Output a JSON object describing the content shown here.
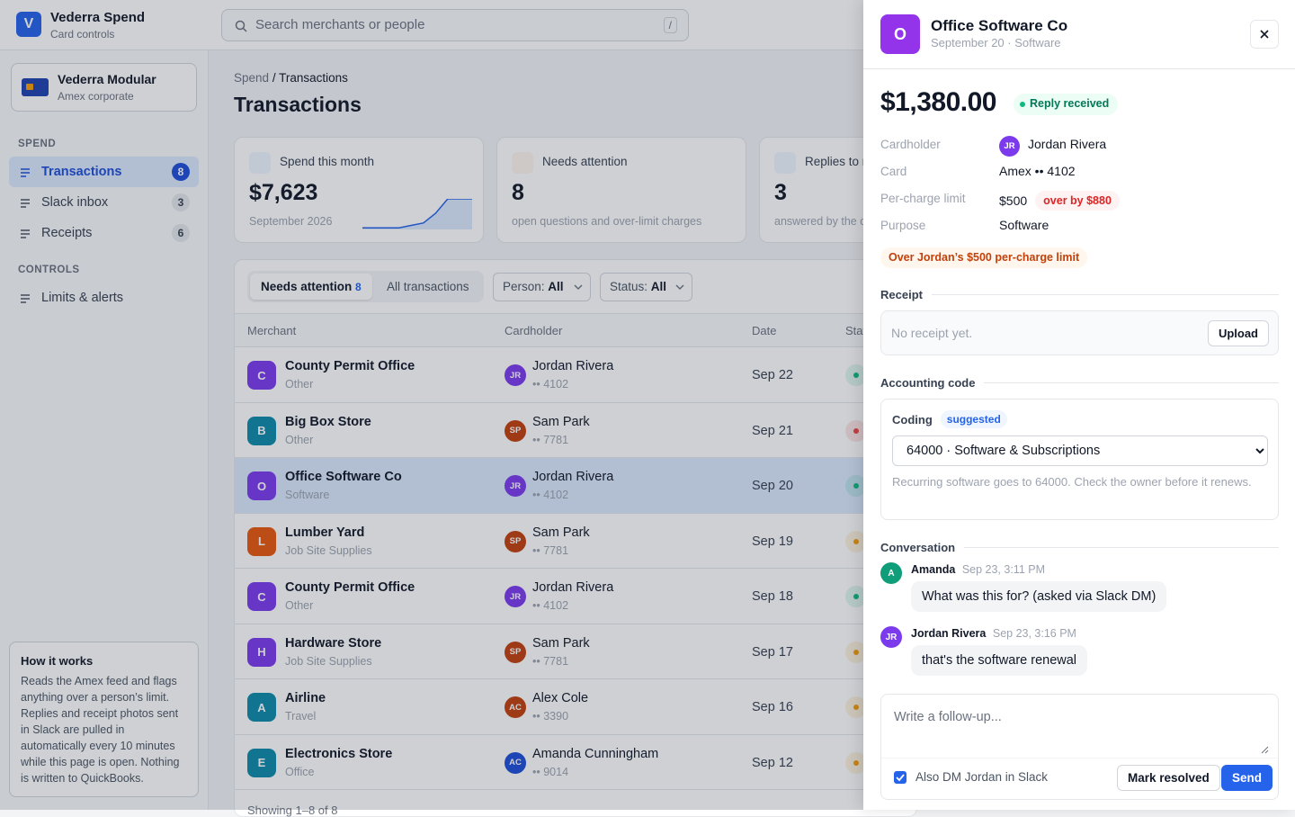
{
  "app": {
    "logo": "V",
    "name": "Vederra Spend",
    "subtitle": "Card controls"
  },
  "search": {
    "placeholder": "Search merchants or people",
    "shortcut": "/"
  },
  "workspace": {
    "name": "Vederra Modular",
    "subtitle": "Amex corporate"
  },
  "nav": [
    {
      "title": "SPEND",
      "items": [
        {
          "label": "Transactions",
          "count": 8,
          "active": true
        },
        {
          "label": "Slack inbox",
          "count": 3
        },
        {
          "label": "Receipts",
          "count": 6
        }
      ]
    },
    {
      "title": "CONTROLS",
      "items": [
        {
          "label": "Limits & alerts"
        }
      ]
    }
  ],
  "how_it_works": {
    "title": "How it works",
    "body": "Reads the Amex feed and flags anything over a person’s limit. Replies and receipt photos sent in Slack are pulled in automatically every 10 minutes while this page is open. Nothing is written to QuickBooks."
  },
  "breadcrumb": {
    "parent": "Spend",
    "separator": "/",
    "current": "Transactions"
  },
  "page_title": "Transactions",
  "stats": [
    {
      "label": "Spend this month",
      "value": "$7,623",
      "note": "September 2026",
      "sparkline": [
        2,
        2,
        2,
        2,
        5,
        8,
        20,
        38,
        38,
        38
      ]
    },
    {
      "label": "Needs attention",
      "value": "8",
      "note": "open questions and over-limit charges"
    },
    {
      "label": "Replies to review",
      "value": "3",
      "note": "answered by the cardholder"
    }
  ],
  "filters": {
    "tabs": [
      {
        "label": "Needs attention",
        "count": 8,
        "active": true
      },
      {
        "label": "All transactions"
      }
    ],
    "person": {
      "label": "Person:",
      "value": "All"
    },
    "status": {
      "label": "Status:",
      "value": "All"
    }
  },
  "table": {
    "columns": [
      "Merchant",
      "Cardholder",
      "Date",
      "Status"
    ],
    "rows": [
      {
        "initial": "C",
        "color": "#7c3aed",
        "merchant": "County Permit Office",
        "category": "Other",
        "initials": "JR",
        "person_color": "#7c3aed",
        "cardholder": "Jordan Rivera",
        "card": "•• 4102",
        "date": "Sep 22",
        "status_color": "#10b981"
      },
      {
        "initial": "B",
        "color": "#0e8aa8",
        "merchant": "Big Box Store",
        "category": "Other",
        "initials": "SP",
        "person_color": "#c2410c",
        "cardholder": "Sam Park",
        "card": "•• 7781",
        "date": "Sep 21",
        "status_color": "#ef4444"
      },
      {
        "initial": "O",
        "color": "#7c3aed",
        "merchant": "Office Software Co",
        "category": "Software",
        "initials": "JR",
        "person_color": "#7c3aed",
        "cardholder": "Jordan Rivera",
        "card": "•• 4102",
        "date": "Sep 20",
        "status_color": "#10b981",
        "selected": true
      },
      {
        "initial": "L",
        "color": "#ea580c",
        "merchant": "Lumber Yard",
        "category": "Job Site Supplies",
        "initials": "SP",
        "person_color": "#c2410c",
        "cardholder": "Sam Park",
        "card": "•• 7781",
        "date": "Sep 19",
        "status_color": "#f59e0b"
      },
      {
        "initial": "C",
        "color": "#7c3aed",
        "merchant": "County Permit Office",
        "category": "Other",
        "initials": "JR",
        "person_color": "#7c3aed",
        "cardholder": "Jordan Rivera",
        "card": "•• 4102",
        "date": "Sep 18",
        "status_color": "#10b981"
      },
      {
        "initial": "H",
        "color": "#7c3aed",
        "merchant": "Hardware Store",
        "category": "Job Site Supplies",
        "initials": "SP",
        "person_color": "#c2410c",
        "cardholder": "Sam Park",
        "card": "•• 7781",
        "date": "Sep 17",
        "status_color": "#f59e0b"
      },
      {
        "initial": "A",
        "color": "#0e8aa8",
        "merchant": "Airline",
        "category": "Travel",
        "initials": "AC",
        "person_color": "#c2410c",
        "cardholder": "Alex Cole",
        "card": "•• 3390",
        "date": "Sep 16",
        "status_color": "#f59e0b"
      },
      {
        "initial": "E",
        "color": "#0e8aa8",
        "merchant": "Electronics Store",
        "category": "Office",
        "initials": "AC",
        "person_color": "#1d4ed8",
        "cardholder": "Amanda Cunningham",
        "card": "•• 9014",
        "date": "Sep 12",
        "status_color": "#f59e0b"
      }
    ],
    "footer": "Showing 1–8 of 8"
  },
  "panel": {
    "avatar": "O",
    "merchant": "Office Software Co",
    "meta": "September 20 · Software",
    "amount": "$1,380.00",
    "status": "Reply received",
    "details": [
      {
        "label": "Cardholder",
        "initials": "JR",
        "value": "Jordan Rivera"
      },
      {
        "label": "Card",
        "value": "Amex •• 4102"
      },
      {
        "label": "Per-charge limit",
        "value": "$500",
        "badge": "over by $880"
      },
      {
        "label": "Purpose",
        "value": "Software"
      }
    ],
    "warning": "Over Jordan’s $500 per-charge limit",
    "receipt": {
      "title": "Receipt",
      "empty": "No receipt yet.",
      "button": "Upload"
    },
    "accounting": {
      "title": "Accounting code",
      "label": "Coding",
      "badge": "suggested",
      "selected": "64000 · Software & Subscriptions",
      "hint": "Recurring software goes to 64000. Check the owner before it renews."
    },
    "conversation": {
      "title": "Conversation",
      "messages": [
        {
          "initials": "A",
          "color": "#0f9d7a",
          "author": "Amanda",
          "time": "Sep 23, 3:11 PM",
          "text": "What was this for? (asked via Slack DM)"
        },
        {
          "initials": "JR",
          "color": "#7c3aed",
          "author": "Jordan Rivera",
          "time": "Sep 23, 3:16 PM",
          "text": "that's the software renewal"
        }
      ]
    },
    "reply": {
      "placeholder": "Write a follow-up...",
      "checkbox": "Also DM Jordan in Slack",
      "resolve": "Mark resolved",
      "send": "Send"
    }
  }
}
